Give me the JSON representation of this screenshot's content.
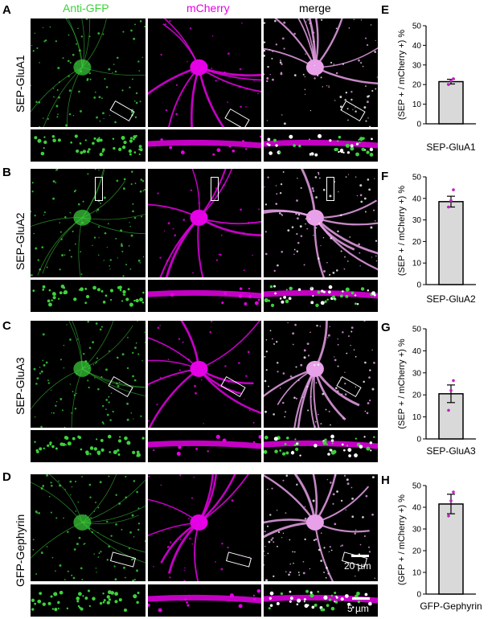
{
  "column_headers": {
    "green": "Anti-GFP",
    "magenta": "mCherry",
    "merge": "merge"
  },
  "colors": {
    "green": "#3cd23c",
    "magenta": "#e600e6",
    "merge": "#e8a0e8",
    "bar_fill": "#d9d9d9",
    "dot": "#c020c0"
  },
  "rows": [
    {
      "letter": "A",
      "label": "SEP-GluA1"
    },
    {
      "letter": "B",
      "label": "SEP-GluA2"
    },
    {
      "letter": "C",
      "label": "SEP-GluA3"
    },
    {
      "letter": "D",
      "label": "GFP-Gephyrin"
    }
  ],
  "scale_bars": {
    "large": "20 µm",
    "small": "5 µm"
  },
  "chart_data": [
    {
      "type": "bar",
      "panel": "E",
      "categories": [
        "SEP-GluA1"
      ],
      "values": [
        21.5
      ],
      "error": [
        1.2
      ],
      "points": [
        [
          20,
          22,
          23
        ]
      ],
      "ylabel": "(SEP + / mCherry +) %",
      "ylim": [
        0,
        50
      ],
      "yticks": [
        0,
        10,
        20,
        30,
        40,
        50
      ]
    },
    {
      "type": "bar",
      "panel": "F",
      "categories": [
        "SEP-GluA2"
      ],
      "values": [
        38.5
      ],
      "error": [
        2.5
      ],
      "points": [
        [
          36,
          39,
          44
        ]
      ],
      "ylabel": "(SEP + / mCherry +) %",
      "ylim": [
        0,
        50
      ],
      "yticks": [
        0,
        10,
        20,
        30,
        40,
        50
      ]
    },
    {
      "type": "bar",
      "panel": "G",
      "categories": [
        "SEP-GluA3"
      ],
      "values": [
        20.5
      ],
      "error": [
        4.0
      ],
      "points": [
        [
          13,
          22,
          26.5
        ]
      ],
      "ylabel": "(SEP + / mCherry +) %",
      "ylim": [
        0,
        50
      ],
      "yticks": [
        0,
        10,
        20,
        30,
        40,
        50
      ]
    },
    {
      "type": "bar",
      "panel": "H",
      "categories": [
        "GFP-Gephyrin"
      ],
      "values": [
        41.5
      ],
      "error": [
        4.5
      ],
      "points": [
        [
          36,
          43,
          47
        ]
      ],
      "ylabel": "(GFP + / mCherry +) %",
      "ylim": [
        0,
        50
      ],
      "yticks": [
        0,
        10,
        20,
        30,
        40,
        50
      ]
    }
  ]
}
